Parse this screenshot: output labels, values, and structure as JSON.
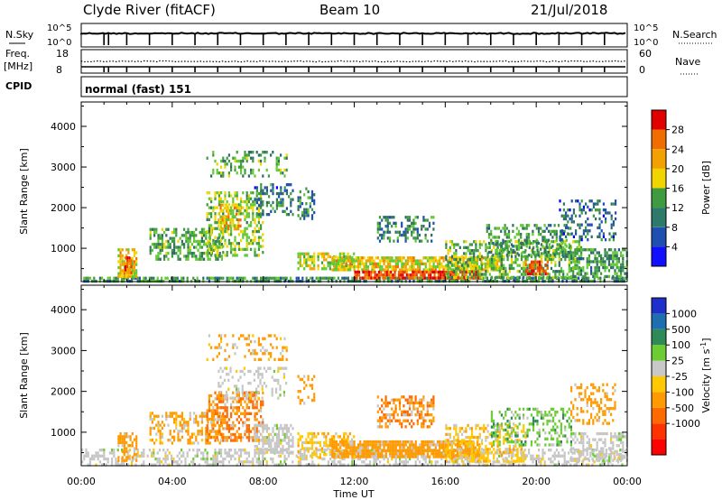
{
  "header": {
    "title": "Clyde River (fitACF)",
    "beam": "Beam 10",
    "date": "21/Jul/2018"
  },
  "strips": {
    "nsky_label": "N.Sky",
    "nsky_ticks": [
      "10^5",
      "10^0"
    ],
    "nsearch_label": "N.Search",
    "nsearch_ticks": [
      "10^5",
      "10^0"
    ],
    "freq_label": "Freq.",
    "freq_unit": "[MHz]",
    "freq_ticks": [
      "18",
      "8"
    ],
    "nave_label": "Nave",
    "nave_ticks": [
      "60",
      "0"
    ],
    "cpid_label": "CPID",
    "cpid_value": "normal (fast) 151"
  },
  "colors": {
    "power": [
      "#0000ff",
      "#1f4fb0",
      "#2e6e64",
      "#3f9b3f",
      "#62c931",
      "#f1d500",
      "#f2a100",
      "#f26d00",
      "#ee3e00",
      "#e10000"
    ],
    "velocity_neg": [
      "#ff0000",
      "#ff3300",
      "#ff6a00",
      "#ff9a00",
      "#ffc800"
    ],
    "velocity_pos": [
      "#c8c8c8",
      "#6ecc33",
      "#2e8b57",
      "#1f6fb0",
      "#1f2fcc"
    ],
    "gray": "#c6c6c6"
  },
  "chart_data": [
    {
      "type": "heatmap",
      "name": "power-panel",
      "xlabel": "",
      "ylabel": "Slant Range [km]",
      "x_range": [
        "00:00",
        "24:00"
      ],
      "ylim": [
        180,
        4600
      ],
      "yticks": [
        1000,
        2000,
        3000,
        4000
      ],
      "colorbar_label": "Power [dB]",
      "colorbar_range": [
        0,
        32
      ],
      "colorbar_ticks": [
        "4",
        "8",
        "12",
        "16",
        "20",
        "24",
        "28"
      ],
      "regions": [
        {
          "t0": 0.0,
          "t1": 24.0,
          "r0": 180,
          "r1": 300,
          "v": 10,
          "d": 0.7
        },
        {
          "t0": 1.6,
          "t1": 2.4,
          "r0": 300,
          "r1": 1000,
          "v": 18,
          "d": 0.75
        },
        {
          "t0": 1.9,
          "t1": 2.2,
          "r0": 400,
          "r1": 800,
          "v": 26,
          "d": 0.8
        },
        {
          "t0": 3.0,
          "t1": 6.2,
          "r0": 700,
          "r1": 1500,
          "v": 12,
          "d": 0.55
        },
        {
          "t0": 5.5,
          "t1": 8.0,
          "r0": 800,
          "r1": 2400,
          "v": 14,
          "d": 0.5
        },
        {
          "t0": 6.0,
          "t1": 7.0,
          "r0": 1500,
          "r1": 2100,
          "v": 20,
          "d": 0.55
        },
        {
          "t0": 7.6,
          "t1": 9.3,
          "r0": 1800,
          "r1": 2600,
          "v": 8,
          "d": 0.4
        },
        {
          "t0": 5.5,
          "t1": 9.0,
          "r0": 2800,
          "r1": 3400,
          "v": 12,
          "d": 0.25
        },
        {
          "t0": 9.5,
          "t1": 12.0,
          "r0": 500,
          "r1": 900,
          "v": 16,
          "d": 0.55
        },
        {
          "t0": 11.0,
          "t1": 18.5,
          "r0": 450,
          "r1": 800,
          "v": 18,
          "d": 0.8
        },
        {
          "t0": 12.0,
          "t1": 17.5,
          "r0": 250,
          "r1": 450,
          "v": 27,
          "d": 0.85
        },
        {
          "t0": 13.0,
          "t1": 15.5,
          "r0": 1200,
          "r1": 1800,
          "v": 9,
          "d": 0.45
        },
        {
          "t0": 9.5,
          "t1": 10.2,
          "r0": 1700,
          "r1": 2500,
          "v": 9,
          "d": 0.35
        },
        {
          "t0": 16.0,
          "t1": 22.0,
          "r0": 300,
          "r1": 1200,
          "v": 13,
          "d": 0.5
        },
        {
          "t0": 17.8,
          "t1": 21.5,
          "r0": 800,
          "r1": 1600,
          "v": 11,
          "d": 0.45
        },
        {
          "t0": 19.5,
          "t1": 20.5,
          "r0": 400,
          "r1": 700,
          "v": 26,
          "d": 0.55
        },
        {
          "t0": 21.5,
          "t1": 24.0,
          "r0": 300,
          "r1": 1000,
          "v": 11,
          "d": 0.55
        },
        {
          "t0": 21.0,
          "t1": 23.5,
          "r0": 1200,
          "r1": 2200,
          "v": 7,
          "d": 0.3
        }
      ]
    },
    {
      "type": "heatmap",
      "name": "velocity-panel",
      "xlabel": "Time UT",
      "ylabel": "Slant Range [km]",
      "x_range": [
        "00:00",
        "24:00"
      ],
      "xticks": [
        "00:00",
        "04:00",
        "08:00",
        "12:00",
        "16:00",
        "20:00",
        "00:00"
      ],
      "ylim": [
        180,
        4600
      ],
      "yticks": [
        1000,
        2000,
        3000,
        4000
      ],
      "colorbar_label": "Velocity [m s^-1]",
      "colorbar_ticks": [
        "1000",
        "500",
        "100",
        "25",
        "-25",
        "-100",
        "-500",
        "-1000"
      ],
      "regions": [
        {
          "t0": 0.0,
          "t1": 24.0,
          "r0": 180,
          "r1": 600,
          "v": 0,
          "d": 0.45
        },
        {
          "t0": 1.6,
          "t1": 2.4,
          "r0": 300,
          "r1": 1000,
          "v": -200,
          "d": 0.6
        },
        {
          "t0": 3.0,
          "t1": 6.2,
          "r0": 700,
          "r1": 1500,
          "v": -150,
          "d": 0.45
        },
        {
          "t0": 5.5,
          "t1": 8.0,
          "r0": 800,
          "r1": 2000,
          "v": -300,
          "d": 0.5
        },
        {
          "t0": 6.0,
          "t1": 9.0,
          "r0": 1800,
          "r1": 2600,
          "v": 0,
          "d": 0.3
        },
        {
          "t0": 7.6,
          "t1": 9.3,
          "r0": 500,
          "r1": 1200,
          "v": 0,
          "d": 0.6
        },
        {
          "t0": 5.5,
          "t1": 9.0,
          "r0": 2800,
          "r1": 3400,
          "v": -150,
          "d": 0.2
        },
        {
          "t0": 9.5,
          "t1": 12.0,
          "r0": 400,
          "r1": 1000,
          "v": -80,
          "d": 0.45
        },
        {
          "t0": 11.0,
          "t1": 17.5,
          "r0": 400,
          "r1": 800,
          "v": -200,
          "d": 0.85
        },
        {
          "t0": 13.0,
          "t1": 15.5,
          "r0": 1100,
          "r1": 1900,
          "v": -300,
          "d": 0.5
        },
        {
          "t0": 9.5,
          "t1": 10.2,
          "r0": 1700,
          "r1": 2400,
          "v": -200,
          "d": 0.3
        },
        {
          "t0": 16.0,
          "t1": 19.5,
          "r0": 300,
          "r1": 1200,
          "v": -80,
          "d": 0.45
        },
        {
          "t0": 18.0,
          "t1": 21.5,
          "r0": 700,
          "r1": 1600,
          "v": 80,
          "d": 0.35
        },
        {
          "t0": 21.5,
          "t1": 24.0,
          "r0": 300,
          "r1": 1000,
          "v": 0,
          "d": 0.5
        },
        {
          "t0": 21.5,
          "t1": 23.5,
          "r0": 1200,
          "r1": 2200,
          "v": -200,
          "d": 0.3
        }
      ]
    }
  ]
}
